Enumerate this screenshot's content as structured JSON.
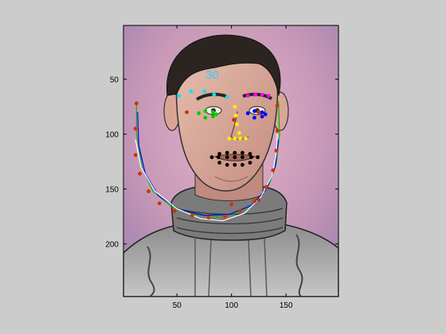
{
  "figure": {
    "background": "#cccccc",
    "overlay_label": "30",
    "overlay_label_color": "#2fd0ff"
  },
  "axes": {
    "x_ticks": [
      {
        "value": 50,
        "label": "50"
      },
      {
        "value": 100,
        "label": "100"
      },
      {
        "value": 150,
        "label": "150"
      }
    ],
    "y_ticks": [
      {
        "value": 50,
        "label": "50"
      },
      {
        "value": 100,
        "label": "100"
      },
      {
        "value": 150,
        "label": "150"
      },
      {
        "value": 200,
        "label": "200"
      }
    ],
    "xlim": [
      1,
      198
    ],
    "ylim": [
      1,
      248
    ],
    "y_direction": "reversed",
    "grid": false
  },
  "image": {
    "subject": "illustrated portrait of a man in a grey turtleneck sweater",
    "background_colors": [
      "#d8a8bf",
      "#a985b3"
    ]
  },
  "landmarks": {
    "jaw_red": {
      "color": "#cc3300",
      "points": [
        [
          13,
          72
        ],
        [
          12,
          95
        ],
        [
          12,
          119
        ],
        [
          16,
          136
        ],
        [
          24,
          152
        ],
        [
          34,
          163
        ],
        [
          48,
          170
        ],
        [
          64,
          174
        ],
        [
          79,
          176
        ],
        [
          94,
          175
        ],
        [
          108,
          170
        ],
        [
          121,
          161
        ],
        [
          132,
          148
        ],
        [
          138,
          133
        ],
        [
          141,
          115
        ],
        [
          142,
          97
        ],
        [
          142,
          74
        ]
      ]
    },
    "brow_left_cyan": {
      "color": "#00e5ff",
      "points": [
        [
          52,
          65
        ],
        [
          63,
          61
        ],
        [
          75,
          61
        ],
        [
          84,
          64
        ],
        [
          96,
          66
        ]
      ]
    },
    "brow_right_magenta": {
      "color": "#ff00ff",
      "points": [
        [
          115,
          65
        ],
        [
          122,
          64
        ],
        [
          128,
          64
        ],
        [
          134,
          65
        ]
      ]
    },
    "eye_left_green": {
      "color": "#00cc00",
      "points": [
        [
          70,
          81
        ],
        [
          76,
          79
        ],
        [
          83,
          80
        ],
        [
          86,
          82
        ],
        [
          83,
          84
        ],
        [
          76,
          85
        ]
      ]
    },
    "eye_right_blue": {
      "color": "#0000ff",
      "points": [
        [
          115,
          81
        ],
        [
          121,
          79
        ],
        [
          128,
          80
        ],
        [
          131,
          82
        ],
        [
          128,
          84
        ],
        [
          121,
          85
        ]
      ]
    },
    "nose_yellow": {
      "color": "#ffee00",
      "points": [
        [
          103,
          75
        ],
        [
          104,
          83
        ],
        [
          105,
          91
        ],
        [
          107,
          99
        ],
        [
          98,
          104
        ],
        [
          103,
          104
        ],
        [
          108,
          104
        ],
        [
          113,
          104
        ]
      ]
    },
    "mouth_black": {
      "color": "#000000",
      "points": [
        [
          82,
          121
        ],
        [
          89,
          118
        ],
        [
          96,
          117
        ],
        [
          103,
          117
        ],
        [
          110,
          117
        ],
        [
          117,
          118
        ],
        [
          124,
          121
        ],
        [
          117,
          126
        ],
        [
          110,
          128
        ],
        [
          103,
          128
        ],
        [
          96,
          128
        ],
        [
          89,
          126
        ],
        [
          88,
          121
        ],
        [
          96,
          121
        ],
        [
          103,
          121
        ],
        [
          110,
          121
        ],
        [
          118,
          121
        ]
      ]
    },
    "red_extra": {
      "color": "#cc3300",
      "points": [
        [
          59,
          80
        ],
        [
          125,
          80
        ],
        [
          102,
          87
        ],
        [
          100,
          164
        ],
        [
          125,
          160
        ]
      ]
    }
  },
  "curves": {
    "green_fit": {
      "color": "#00bb00",
      "points": [
        [
          13,
          70
        ],
        [
          13,
          100
        ],
        [
          18,
          130
        ],
        [
          28,
          152
        ],
        [
          45,
          166
        ],
        [
          65,
          173
        ],
        [
          85,
          175
        ],
        [
          105,
          172
        ],
        [
          122,
          162
        ],
        [
          134,
          147
        ],
        [
          141,
          127
        ],
        [
          144,
          100
        ],
        [
          143,
          70
        ]
      ]
    },
    "blue_fit": {
      "color": "#0000ff",
      "points": [
        [
          14,
          80
        ],
        [
          15,
          110
        ],
        [
          21,
          136
        ],
        [
          33,
          156
        ],
        [
          52,
          169
        ],
        [
          75,
          174
        ],
        [
          98,
          173
        ],
        [
          118,
          165
        ],
        [
          132,
          150
        ],
        [
          140,
          130
        ],
        [
          143,
          105
        ]
      ]
    },
    "white_fit": {
      "color": "#ffffff",
      "points": [
        [
          12,
          105
        ],
        [
          17,
          130
        ],
        [
          30,
          152
        ],
        [
          50,
          168
        ],
        [
          72,
          177
        ],
        [
          92,
          179
        ],
        [
          112,
          172
        ],
        [
          127,
          157
        ],
        [
          137,
          138
        ],
        [
          141,
          118
        ],
        [
          142,
          100
        ]
      ]
    }
  }
}
